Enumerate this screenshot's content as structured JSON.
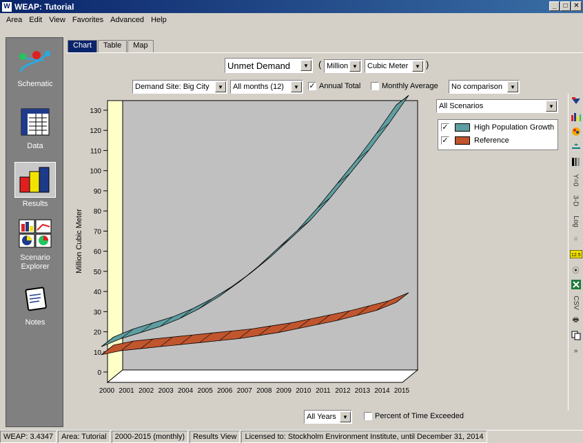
{
  "window": {
    "title": "WEAP: Tutorial",
    "icon_letter": "W",
    "minimize": "_",
    "maximize": "□",
    "close": "✕"
  },
  "menu": [
    "Area",
    "Edit",
    "View",
    "Favorites",
    "Advanced",
    "Help"
  ],
  "nav": [
    {
      "label": "Schematic",
      "icon": "schematic-icon"
    },
    {
      "label": "Data",
      "icon": "data-icon"
    },
    {
      "label": "Results",
      "icon": "results-icon",
      "selected": true
    },
    {
      "label": "Scenario Explorer",
      "icon": "scenario-explorer-icon"
    },
    {
      "label": "Notes",
      "icon": "notes-icon"
    }
  ],
  "tabs": [
    "Chart",
    "Table",
    "Map"
  ],
  "controls": {
    "variable": "Unmet Demand",
    "scale": "Million",
    "unit": "Cubic Meter",
    "demand_site": "Demand Site: Big City",
    "months": "All months (12)",
    "annual_total_label": "Annual Total",
    "annual_total_checked": true,
    "monthly_average_label": "Monthly Average",
    "monthly_average_checked": false,
    "comparison": "No comparison",
    "scenarios": "All Scenarios",
    "years": "All Years",
    "percent_exceeded_label": "Percent of Time Exceeded",
    "percent_exceeded_checked": false,
    "paren_open": "(",
    "paren_close": ")"
  },
  "legend": [
    {
      "label": "High Population Growth",
      "checked": true,
      "color": "#5f9ea0"
    },
    {
      "label": "Reference",
      "checked": true,
      "color": "#c0552e"
    }
  ],
  "tools": [
    "3-D",
    "Log",
    "CSV"
  ],
  "tool_marks": {
    "y0": "Y=0",
    "label_125": "12.5"
  },
  "status": [
    "WEAP: 3.4347",
    "Area: Tutorial",
    "2000-2015 (monthly)",
    "Results View",
    "Licensed to: Stockholm Environment Institute, until December 31, 2014"
  ],
  "chart_data": {
    "type": "area",
    "ylabel": "Million Cubic Meter",
    "ylim": [
      0,
      130
    ],
    "yticks": [
      0,
      10,
      20,
      30,
      40,
      50,
      60,
      70,
      80,
      90,
      100,
      110,
      120,
      130
    ],
    "categories": [
      "2000",
      "2001",
      "2002",
      "2003",
      "2004",
      "2005",
      "2006",
      "2007",
      "2008",
      "2009",
      "2010",
      "2011",
      "2012",
      "2013",
      "2014",
      "2015"
    ],
    "series": [
      {
        "name": "High Population Growth",
        "color": "#5f9ea0",
        "values": [
          15,
          19,
          22,
          25,
          29,
          34,
          40,
          47,
          55,
          64,
          73,
          84,
          96,
          108,
          121,
          135
        ]
      },
      {
        "name": "Reference",
        "color": "#c0552e",
        "values": [
          11,
          13,
          14,
          15,
          16,
          17,
          18,
          19,
          20.5,
          22,
          24,
          26,
          28,
          30.5,
          33,
          37
        ]
      }
    ]
  }
}
